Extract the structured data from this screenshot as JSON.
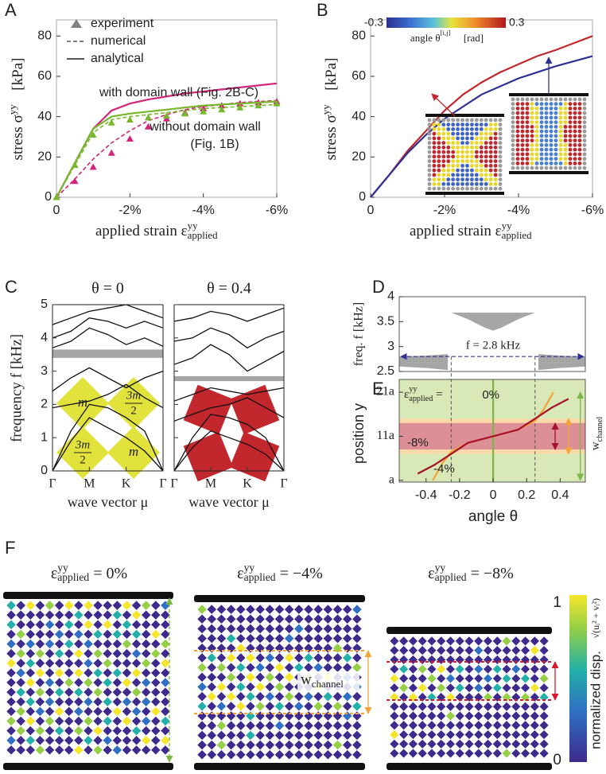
{
  "chart_data": [
    {
      "type": "line",
      "panel_label": "A",
      "x_label": {
        "base": "applied strain ε",
        "sup": "yy",
        "sub": "applied"
      },
      "y_label": {
        "base": "stress σ",
        "sup": "yy",
        "tail": " [kPa]"
      },
      "x": [
        0,
        -0.5,
        -1,
        -1.5,
        -2,
        -2.5,
        -3,
        -3.5,
        -4,
        -4.5,
        -5,
        -5.5,
        -6
      ],
      "xlim": [
        0,
        -6
      ],
      "xticks": [
        0,
        {
          "value": -2,
          "label": "-2%"
        },
        {
          "value": -4,
          "label": "-4%"
        },
        {
          "value": -6,
          "label": "-6%"
        }
      ],
      "ylim": [
        0,
        88
      ],
      "yticks": [
        0,
        20,
        40,
        60,
        80
      ],
      "legend": [
        "experiment",
        "numerical",
        "analytical"
      ],
      "legend_color": "#808080",
      "series": [
        {
          "name": [
            "with domain wall (Fig. 2B-C)"
          ],
          "color": "#d4237b",
          "analytical": [
            0,
            17,
            34,
            43,
            46.5,
            48.5,
            50,
            51.5,
            52.5,
            53.5,
            54.5,
            55.5,
            56.5
          ],
          "numerical": [
            0,
            9,
            19,
            27,
            33,
            38,
            41,
            43.5,
            45,
            46,
            47,
            47.5,
            48
          ],
          "experiment": [
            0,
            8,
            15,
            22,
            29,
            35,
            39,
            42,
            44,
            45.5,
            46.5,
            47,
            47.5
          ]
        },
        {
          "name": [
            "without domain wall",
            "(Fig. 1B)"
          ],
          "color": "#76b82a",
          "analytical": [
            0,
            17,
            34,
            40,
            41.5,
            42.5,
            43.5,
            44.5,
            45.5,
            46,
            46.5,
            47,
            47.5
          ],
          "numerical": [
            0,
            16,
            32,
            38.5,
            40,
            41,
            42,
            43,
            44,
            44.5,
            45,
            45.5,
            46
          ],
          "experiment": [
            0,
            16,
            31,
            37,
            38.5,
            39.5,
            40.5,
            41.5,
            42.5,
            43.5,
            44.5,
            45.5,
            46.5
          ]
        }
      ]
    },
    {
      "type": "line",
      "panel_label": "B",
      "x_label": {
        "base": "applied strain ε",
        "sup": "yy",
        "sub": "applied"
      },
      "y_label": {
        "base": "stress σ",
        "sup": "yy",
        "tail": " [kPa]"
      },
      "x": [
        0,
        -0.5,
        -1,
        -1.5,
        -2,
        -2.5,
        -3,
        -3.5,
        -4,
        -4.5,
        -5,
        -5.5,
        -6
      ],
      "xlim": [
        0,
        -6
      ],
      "xticks": [
        0,
        {
          "value": -2,
          "label": "-2%"
        },
        {
          "value": -4,
          "label": "-4%"
        },
        {
          "value": -6,
          "label": "-6%"
        }
      ],
      "ylim": [
        0,
        88
      ],
      "yticks": [
        0,
        20,
        40,
        60,
        80
      ],
      "colorbar": {
        "range": [
          -0.3,
          0.3
        ],
        "ticks": [
          -0.3,
          0.3
        ],
        "label": {
          "base": "angle θ",
          "sup": "[i,j]",
          "tail": " [rad]"
        }
      },
      "series": [
        {
          "color": "#c1272d",
          "values": [
            0,
            11,
            23,
            33,
            43,
            51,
            57,
            62,
            66,
            70,
            73,
            76.5,
            80
          ]
        },
        {
          "color": "#2e3192",
          "values": [
            0,
            11,
            22,
            31,
            39,
            45,
            51,
            55,
            59,
            62,
            65,
            67.5,
            70
          ]
        }
      ]
    },
    {
      "type": "band_structure",
      "panel_label": "C",
      "y_label": "frequency f [kHz]",
      "x_label": "wave vector μ",
      "x": [
        0,
        0.5,
        1,
        1.5,
        2,
        2.5,
        3
      ],
      "xlim": [
        0,
        3
      ],
      "xticks": [
        {
          "value": 0,
          "label": "Γ"
        },
        {
          "value": 1,
          "label": "M"
        },
        {
          "value": 2,
          "label": "K"
        },
        {
          "value": 3,
          "label": "Γ"
        }
      ],
      "ylim": [
        0,
        5
      ],
      "yticks": [
        0,
        1,
        2,
        3,
        4,
        5
      ],
      "gap_color": "#a6a6a6",
      "plots": [
        {
          "title": "θ = 0",
          "gap": [
            3.4,
            3.65
          ],
          "inset_color": "#e2e23c",
          "inset_labels": [
            "m",
            {
              "num": "3m",
              "den": "2"
            },
            {
              "num": "3m",
              "den": "2"
            },
            "m"
          ],
          "bands": [
            [
              0,
              0.9,
              1.6,
              1.3,
              1.0,
              0.6,
              0
            ],
            [
              0,
              1.2,
              2.0,
              1.9,
              1.6,
              1.2,
              0
            ],
            [
              1.9,
              2.0,
              2.1,
              2.3,
              2.6,
              2.2,
              1.9
            ],
            [
              2.4,
              2.8,
              3.1,
              2.8,
              2.5,
              2.8,
              3.0
            ],
            [
              3.7,
              3.9,
              4.3,
              4.1,
              3.8,
              4.0,
              3.75
            ],
            [
              4.0,
              4.2,
              4.6,
              4.5,
              4.3,
              4.5,
              4.3
            ],
            [
              4.4,
              4.6,
              4.8,
              4.9,
              5.0,
              4.8,
              4.6
            ]
          ]
        },
        {
          "title": "θ = 0.4",
          "gap": [
            2.7,
            2.85
          ],
          "inset_color": "#c1272d",
          "bands": [
            [
              0,
              0.7,
              1.2,
              1.0,
              0.8,
              0.5,
              0
            ],
            [
              0,
              1.0,
              1.7,
              1.6,
              1.4,
              1.0,
              0
            ],
            [
              1.5,
              1.7,
              1.9,
              2.0,
              2.2,
              1.9,
              1.6
            ],
            [
              2.1,
              2.3,
              2.5,
              2.4,
              2.3,
              2.4,
              2.5
            ],
            [
              3.2,
              3.4,
              3.8,
              3.5,
              3.0,
              3.3,
              3.6
            ],
            [
              3.9,
              4.0,
              4.3,
              4.1,
              3.7,
              4.0,
              4.2
            ],
            [
              4.5,
              4.6,
              4.8,
              4.7,
              4.5,
              4.7,
              4.9
            ]
          ]
        }
      ]
    },
    {
      "type": "area",
      "panel_label": "D",
      "y_label": "freq. f [kHz]",
      "xlim": [
        -0.56,
        0.55
      ],
      "ylim": [
        2.5,
        4
      ],
      "yticks": [
        2.5,
        3,
        3.5,
        4
      ],
      "color": "#a6a6a6",
      "regions": [
        {
          "x": [
            -0.56,
            -0.4,
            -0.27
          ],
          "low": [
            2.6,
            2.57,
            2.53
          ],
          "high": [
            2.8,
            2.82,
            2.85
          ]
        },
        {
          "x": [
            -0.25,
            -0.15,
            -0.05,
            0,
            0.05,
            0.15,
            0.25
          ],
          "low": [
            3.68,
            3.55,
            3.38,
            3.32,
            3.38,
            3.55,
            3.68
          ],
          "high": [
            3.68,
            3.68,
            3.68,
            3.68,
            3.68,
            3.68,
            3.68
          ]
        },
        {
          "x": [
            0.27,
            0.4,
            0.55
          ],
          "low": [
            2.53,
            2.57,
            2.6
          ],
          "high": [
            2.85,
            2.82,
            2.8
          ]
        }
      ],
      "line": {
        "value": 2.8,
        "label": "f = 2.8 kHz",
        "color": "#2e3192"
      },
      "boundaries": [
        -0.25,
        0.25
      ]
    },
    {
      "type": "line",
      "panel_label": "E",
      "x_label": "angle θ",
      "y_label": "position y",
      "xlim": [
        -0.56,
        0.55
      ],
      "xticks": [
        -0.4,
        -0.2,
        0,
        0.2,
        0.4
      ],
      "ylim": [
        0.6,
        23.9
      ],
      "yticks": [
        {
          "value": 1,
          "label": "a"
        },
        {
          "value": 11,
          "label": "11a"
        },
        {
          "value": 21,
          "label": "21a"
        }
      ],
      "background": "#d8e8b6",
      "strain_label": {
        "base": "ε",
        "sup": "yy",
        "sub": "applied",
        "tail": " ="
      },
      "channel_label": {
        "base": "w",
        "sub": "channel"
      },
      "channels": [
        {
          "color": "#f9d9a8",
          "range": [
            7,
            15
          ]
        },
        {
          "color": "#dd8f96",
          "range": [
            8,
            14
          ]
        }
      ],
      "series": [
        {
          "name": "0%",
          "color": "#7ab648",
          "x": [
            0,
            0
          ],
          "values": [
            0.6,
            23.9
          ]
        },
        {
          "name": "-4%",
          "color": "#f2a33a",
          "x": [
            -0.36,
            -0.33,
            -0.3,
            -0.25,
            -0.15,
            0,
            0.15,
            0.25,
            0.3,
            0.33,
            0.36
          ],
          "values": [
            1,
            3,
            5,
            7.5,
            9.5,
            11,
            12.5,
            14.5,
            17,
            19,
            21
          ]
        },
        {
          "name": "-8%",
          "color": "#a5122a",
          "x": [
            -0.45,
            -0.35,
            -0.25,
            -0.15,
            0,
            0.15,
            0.25,
            0.35,
            0.45
          ],
          "values": [
            2.5,
            4.5,
            7,
            9.5,
            11,
            12.5,
            15,
            17.5,
            19.5
          ]
        }
      ]
    }
  ],
  "figure_f": {
    "panel_label": "F",
    "titles": [
      {
        "base": "ε",
        "sup": "yy",
        "sub": "applied",
        "tail": " = 0%"
      },
      {
        "base": "ε",
        "sup": "yy",
        "sub": "applied",
        "tail": " = −4%"
      },
      {
        "base": "ε",
        "sup": "yy",
        "sub": "applied",
        "tail": " = −8%"
      }
    ],
    "channel_label": {
      "base": "w",
      "sub": "channel"
    },
    "colorbar": {
      "range": [
        0,
        1
      ],
      "ticks": [
        0,
        1
      ],
      "label": "normalized disp.",
      "formula": "√(uᵢ² + vᵢ²)"
    }
  }
}
